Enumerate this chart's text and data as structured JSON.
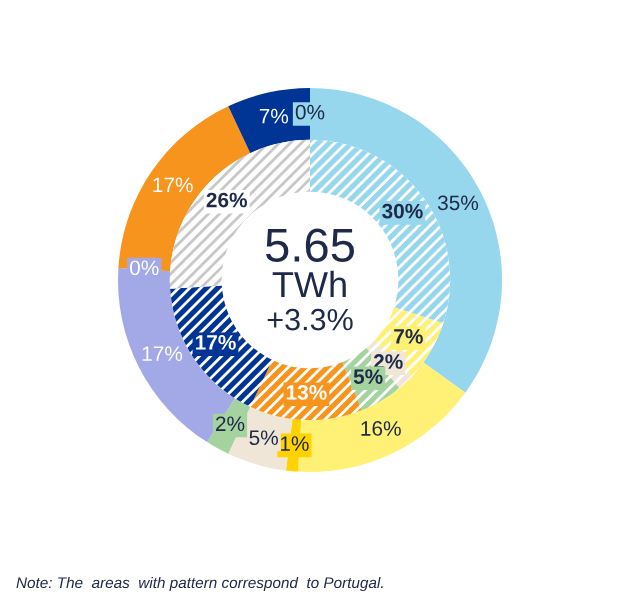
{
  "chart_data": {
    "type": "donut",
    "series": [
      {
        "values": [
          0,
          35,
          16,
          1,
          5,
          2,
          17,
          0,
          17,
          7
        ],
        "colors": [
          "#97d7ee",
          "#97d7ee",
          "#fff176",
          "#ffd200",
          "#f0e6d8",
          "#a5d3a0",
          "#a3a9e6",
          "#a3a9e6",
          "#f7941d",
          "#003595"
        ],
        "value_labels": [
          "0%",
          "35%",
          "16%",
          "1%",
          "5%",
          "2%",
          "17%",
          "0%",
          "17%",
          "7%"
        ]
      },
      {
        "values": [
          30,
          7,
          2,
          5,
          13,
          17,
          26
        ],
        "colors": [
          "#97d7ee",
          "#fff176",
          "#f0e6d8",
          "#a5d3a0",
          "#f7941d",
          "#003595",
          "#ffffff"
        ],
        "value_labels": [
          "30%",
          "7%",
          "2%",
          "5%",
          "13%",
          "17%",
          "26%"
        ]
      }
    ],
    "annotations": [
      "5.65",
      "TWh",
      "+3.3%",
      "Note: The  areas  with pattern correspond  to Portugal."
    ],
    "legend": false
  }
}
